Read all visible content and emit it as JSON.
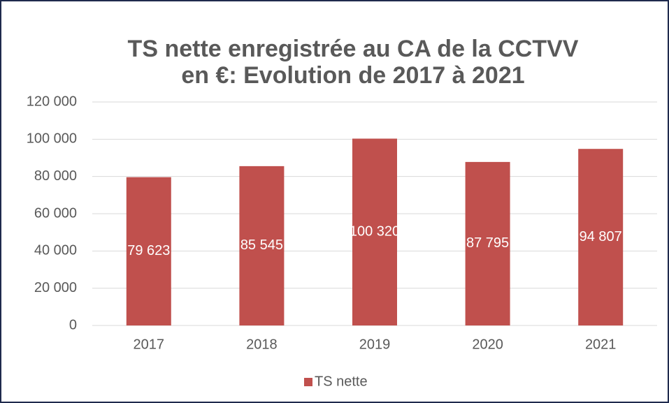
{
  "chart_data": {
    "type": "bar",
    "title": [
      "TS nette enregistrée au CA de la CCTVV",
      "en €: Evolution de 2017 à 2021"
    ],
    "categories": [
      "2017",
      "2018",
      "2019",
      "2020",
      "2021"
    ],
    "series": [
      {
        "name": "TS nette",
        "color": "#c0504d",
        "values": [
          79623,
          85545,
          100320,
          87795,
          94807
        ],
        "value_labels": [
          "79 623",
          "85 545",
          "100 320",
          "87 795",
          "94 807"
        ]
      }
    ],
    "ylim": [
      0,
      120000
    ],
    "yticks": [
      0,
      {
        "value": 20000,
        "label": "20 000"
      },
      {
        "value": 40000,
        "label": "40 000"
      },
      {
        "value": 60000,
        "label": "60 000"
      },
      {
        "value": 80000,
        "label": "80 000"
      },
      {
        "value": 100000,
        "label": "100 000"
      },
      {
        "value": 120000,
        "label": "120 000"
      }
    ],
    "grid": true,
    "legend": "bottom"
  }
}
